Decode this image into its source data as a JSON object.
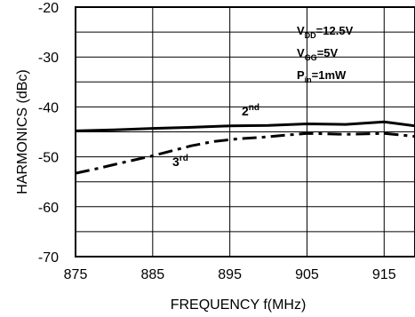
{
  "chart_data": {
    "type": "line",
    "xlabel": "FREQUENCY f(MHz)",
    "ylabel": "HARMONICS (dBc)",
    "xlim": [
      875,
      919
    ],
    "ylim": [
      -70,
      -20
    ],
    "x_ticks": [
      "875",
      "885",
      "895",
      "905",
      "915"
    ],
    "y_ticks": [
      "-20",
      "-30",
      "-40",
      "-50",
      "-60",
      "-70"
    ],
    "grid": true,
    "series": [
      {
        "name": "2nd",
        "label_base": "2",
        "label_sup": "nd",
        "style": "solid",
        "x": [
          875,
          880,
          885,
          890,
          895,
          900,
          905,
          910,
          915,
          919
        ],
        "y": [
          -44.8,
          -44.6,
          -44.3,
          -44.1,
          -43.8,
          -43.7,
          -43.4,
          -43.5,
          -43.0,
          -43.8
        ]
      },
      {
        "name": "3rd",
        "label_base": "3",
        "label_sup": "rd",
        "style": "dashdot",
        "x": [
          875,
          878,
          881,
          885,
          890,
          893,
          896,
          899,
          902,
          905,
          910,
          915,
          919
        ],
        "y": [
          -53.3,
          -52.3,
          -51.2,
          -49.8,
          -47.8,
          -46.9,
          -46.4,
          -46.1,
          -45.7,
          -45.3,
          -45.5,
          -45.3,
          -45.9
        ]
      }
    ],
    "conditions": [
      {
        "base": "V",
        "sub": "DD",
        "rest": "=12.5V"
      },
      {
        "base": "V",
        "sub": "GG",
        "rest": "=5V"
      },
      {
        "base": "P",
        "sub": "in",
        "rest": "=1mW"
      }
    ]
  }
}
